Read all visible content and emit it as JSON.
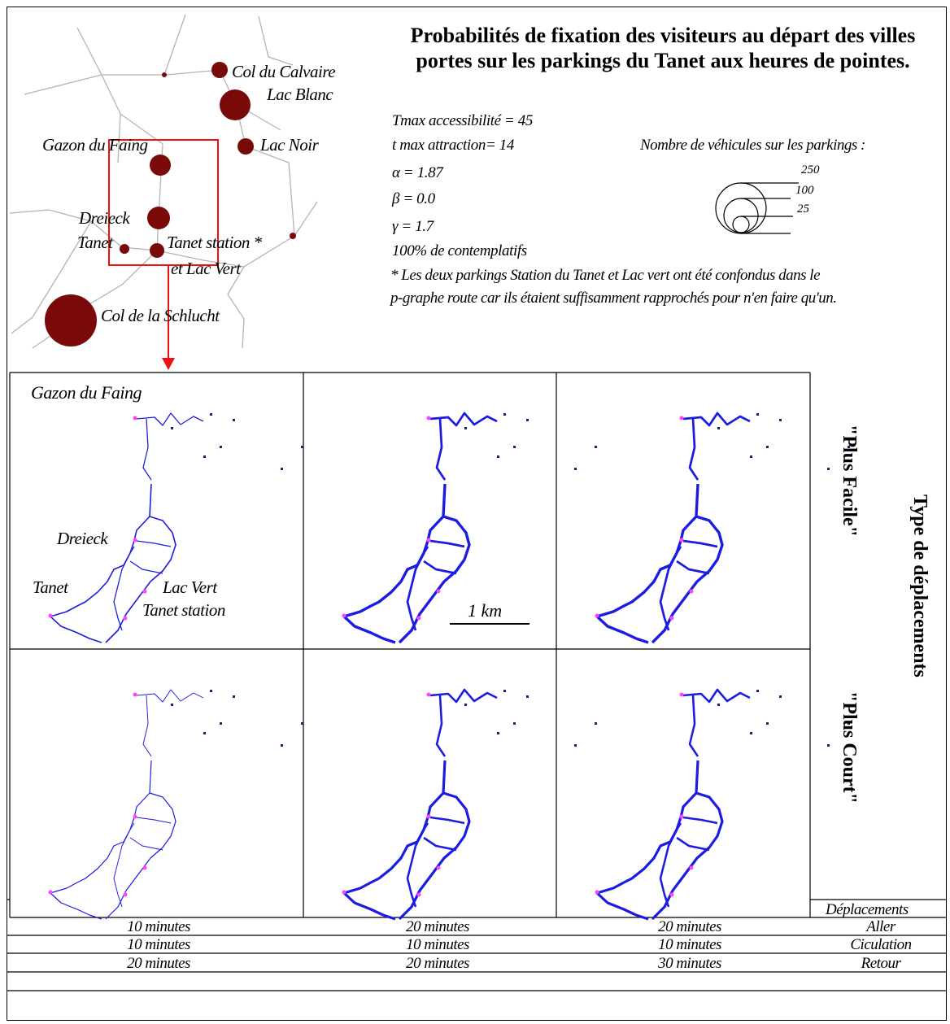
{
  "title": "Probabilités de fixation des visiteurs au départ des villes portes sur les parkings du Tanet aux heures de pointes.",
  "colors": {
    "node": "#7a0a0a",
    "road": "#b4b4b4",
    "highlight": "#ee1111",
    "flow": "#1c1ce0",
    "parking": "#ff44ff",
    "grid": "#000000"
  },
  "overview_map": {
    "places": [
      "Col du Calvaire",
      "Lac Blanc",
      "Lac Noir",
      "Gazon du Faing",
      "Dreieck",
      "Tanet",
      "Tanet station *",
      "et Lac Vert",
      "Col de la Schlucht"
    ]
  },
  "parameters": {
    "tmax_access": "Tmax accessibilité = 45",
    "tmax_attraction": "t max attraction= 14",
    "alpha": "α = 1.87",
    "beta": "β = 0.0",
    "gamma": "γ = 1.7",
    "contemplatifs": "100% de contemplatifs",
    "note_line1": "* Les deux parkings Station du Tanet et Lac vert ont été confondus dans le",
    "note_line2": "p-graphe route car ils étaient suffisamment rapprochés pour n'en faire qu'un."
  },
  "legend": {
    "title": "Nombre de véhicules sur les parkings :",
    "values": [
      "250",
      "100",
      "25"
    ]
  },
  "panel_labels": {
    "gazon": "Gazon du Faing",
    "dreieck": "Dreieck",
    "tanet": "Tanet",
    "lac_vert": "Lac Vert",
    "tanet_station": "Tanet station",
    "scale": "1 km"
  },
  "side": {
    "type_label": "Type de déplacements",
    "row1": "\"Plus Facile\"",
    "row2": "\"Plus Court\"",
    "deplacements": "Déplacements"
  },
  "table": [
    {
      "c1": "10 minutes",
      "c2": "20 minutes",
      "c3": "20 minutes",
      "label": "Aller"
    },
    {
      "c1": "10 minutes",
      "c2": "10 minutes",
      "c3": "10 minutes",
      "label": "Ciculation"
    },
    {
      "c1": "20 minutes",
      "c2": "20 minutes",
      "c3": "30 minutes",
      "label": "Retour"
    }
  ]
}
